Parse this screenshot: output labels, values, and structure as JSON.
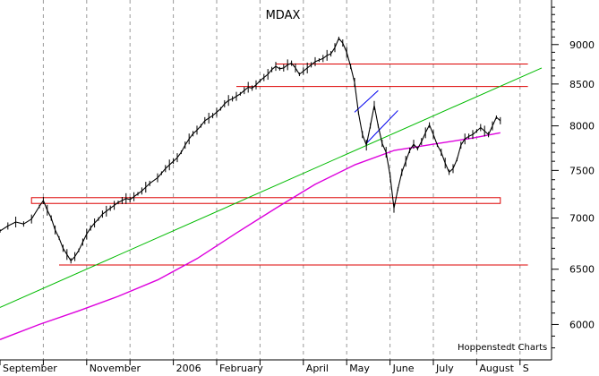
{
  "chart_data": {
    "type": "line",
    "title": "MDAX",
    "credit": "Hoppenstedt Charts",
    "y_scale": "log",
    "ylim": [
      5700,
      9600
    ],
    "xlim": [
      0,
      280
    ],
    "yticks": [
      {
        "value": 9000,
        "label": "9000"
      },
      {
        "value": 8500,
        "label": "8500"
      },
      {
        "value": 8000,
        "label": "8000"
      },
      {
        "value": 7500,
        "label": "7500"
      },
      {
        "value": 7000,
        "label": "7000"
      },
      {
        "value": 6500,
        "label": "6500"
      },
      {
        "value": 6000,
        "label": "6000"
      }
    ],
    "xticks": [
      {
        "t": 0,
        "label": "September"
      },
      {
        "t": 22,
        "label": ""
      },
      {
        "t": 44,
        "label": "November"
      },
      {
        "t": 66,
        "label": ""
      },
      {
        "t": 88,
        "label": "2006"
      },
      {
        "t": 110,
        "label": "February"
      },
      {
        "t": 132,
        "label": ""
      },
      {
        "t": 154,
        "label": "April"
      },
      {
        "t": 176,
        "label": "May"
      },
      {
        "t": 198,
        "label": "June"
      },
      {
        "t": 220,
        "label": "July"
      },
      {
        "t": 242,
        "label": "August"
      },
      {
        "t": 264,
        "label": "S"
      }
    ],
    "vgrid": [
      22,
      44,
      66,
      88,
      110,
      132,
      154,
      176,
      198,
      220,
      242,
      264
    ],
    "series": [
      {
        "name": "",
        "kind": "price",
        "color": "#000000",
        "points": [
          [
            0,
            6870
          ],
          [
            4,
            6920
          ],
          [
            8,
            6960
          ],
          [
            12,
            6940
          ],
          [
            16,
            6990
          ],
          [
            20,
            7120
          ],
          [
            22,
            7180
          ],
          [
            24,
            7080
          ],
          [
            26,
            7000
          ],
          [
            28,
            6880
          ],
          [
            30,
            6800
          ],
          [
            32,
            6700
          ],
          [
            34,
            6640
          ],
          [
            36,
            6580
          ],
          [
            38,
            6620
          ],
          [
            40,
            6680
          ],
          [
            42,
            6760
          ],
          [
            44,
            6840
          ],
          [
            46,
            6900
          ],
          [
            48,
            6950
          ],
          [
            50,
            6990
          ],
          [
            52,
            7040
          ],
          [
            54,
            7070
          ],
          [
            56,
            7100
          ],
          [
            58,
            7130
          ],
          [
            60,
            7160
          ],
          [
            62,
            7180
          ],
          [
            64,
            7200
          ],
          [
            66,
            7190
          ],
          [
            68,
            7220
          ],
          [
            70,
            7250
          ],
          [
            72,
            7280
          ],
          [
            74,
            7320
          ],
          [
            76,
            7360
          ],
          [
            80,
            7420
          ],
          [
            82,
            7470
          ],
          [
            84,
            7520
          ],
          [
            86,
            7560
          ],
          [
            88,
            7600
          ],
          [
            90,
            7640
          ],
          [
            92,
            7700
          ],
          [
            94,
            7780
          ],
          [
            96,
            7850
          ],
          [
            98,
            7910
          ],
          [
            100,
            7950
          ],
          [
            102,
            8000
          ],
          [
            104,
            8060
          ],
          [
            106,
            8090
          ],
          [
            108,
            8120
          ],
          [
            110,
            8160
          ],
          [
            112,
            8200
          ],
          [
            114,
            8260
          ],
          [
            116,
            8300
          ],
          [
            118,
            8320
          ],
          [
            120,
            8350
          ],
          [
            122,
            8380
          ],
          [
            124,
            8420
          ],
          [
            126,
            8460
          ],
          [
            128,
            8450
          ],
          [
            130,
            8490
          ],
          [
            132,
            8540
          ],
          [
            134,
            8580
          ],
          [
            136,
            8620
          ],
          [
            138,
            8680
          ],
          [
            140,
            8720
          ],
          [
            142,
            8690
          ],
          [
            144,
            8700
          ],
          [
            146,
            8740
          ],
          [
            148,
            8760
          ],
          [
            150,
            8700
          ],
          [
            152,
            8620
          ],
          [
            154,
            8660
          ],
          [
            156,
            8700
          ],
          [
            158,
            8740
          ],
          [
            160,
            8780
          ],
          [
            162,
            8800
          ],
          [
            164,
            8820
          ],
          [
            166,
            8860
          ],
          [
            168,
            8880
          ],
          [
            170,
            8960
          ],
          [
            172,
            9080
          ],
          [
            174,
            9020
          ],
          [
            176,
            8900
          ],
          [
            178,
            8720
          ],
          [
            180,
            8520
          ],
          [
            182,
            8150
          ],
          [
            184,
            7900
          ],
          [
            186,
            7780
          ],
          [
            188,
            8000
          ],
          [
            190,
            8240
          ],
          [
            192,
            8000
          ],
          [
            194,
            7800
          ],
          [
            196,
            7700
          ],
          [
            198,
            7450
          ],
          [
            200,
            7100
          ],
          [
            202,
            7300
          ],
          [
            204,
            7480
          ],
          [
            206,
            7600
          ],
          [
            208,
            7720
          ],
          [
            210,
            7790
          ],
          [
            212,
            7740
          ],
          [
            214,
            7820
          ],
          [
            216,
            7920
          ],
          [
            218,
            8010
          ],
          [
            220,
            7900
          ],
          [
            222,
            7780
          ],
          [
            224,
            7700
          ],
          [
            226,
            7580
          ],
          [
            228,
            7480
          ],
          [
            230,
            7520
          ],
          [
            232,
            7620
          ],
          [
            234,
            7780
          ],
          [
            236,
            7850
          ],
          [
            238,
            7880
          ],
          [
            240,
            7900
          ],
          [
            242,
            7940
          ],
          [
            244,
            7980
          ],
          [
            246,
            7940
          ],
          [
            248,
            7900
          ],
          [
            250,
            8000
          ],
          [
            252,
            8100
          ],
          [
            254,
            8060
          ]
        ]
      },
      {
        "name": "",
        "kind": "moving-average",
        "color": "#dd00dd",
        "points": [
          [
            0,
            5870
          ],
          [
            20,
            6000
          ],
          [
            40,
            6120
          ],
          [
            60,
            6250
          ],
          [
            80,
            6400
          ],
          [
            100,
            6600
          ],
          [
            120,
            6850
          ],
          [
            140,
            7100
          ],
          [
            160,
            7350
          ],
          [
            180,
            7560
          ],
          [
            200,
            7720
          ],
          [
            220,
            7790
          ],
          [
            240,
            7860
          ],
          [
            254,
            7920
          ]
        ]
      }
    ],
    "trendlines": [
      {
        "kind": "support-trend",
        "color": "#00bb00",
        "from": [
          0,
          6150
        ],
        "to": [
          275,
          8700
        ]
      },
      {
        "kind": "short-channel",
        "color": "#0000ee",
        "from": [
          180,
          8160
        ],
        "to": [
          192,
          8420
        ]
      },
      {
        "kind": "short-channel",
        "color": "#0000ee",
        "from": [
          186,
          7800
        ],
        "to": [
          202,
          8180
        ]
      }
    ],
    "hlines": [
      {
        "kind": "resistance",
        "color": "#dd0000",
        "value": 8750,
        "t_from": 140,
        "t_to": 268
      },
      {
        "kind": "resistance",
        "color": "#dd0000",
        "value": 8470,
        "t_from": 120,
        "t_to": 268
      },
      {
        "kind": "support",
        "color": "#dd0000",
        "value": 6540,
        "t_from": 30,
        "t_to": 268
      }
    ],
    "boxes": [
      {
        "kind": "support-zone",
        "color": "#dd0000",
        "t_from": 16,
        "t_to": 254,
        "y_from": 7150,
        "y_to": 7210
      }
    ]
  }
}
